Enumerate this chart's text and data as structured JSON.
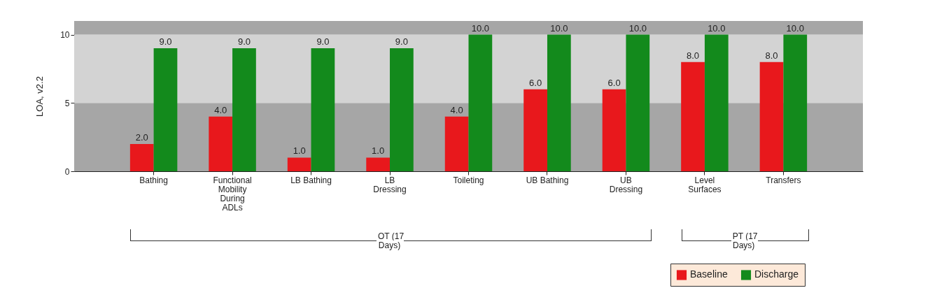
{
  "chart_data": {
    "type": "bar",
    "ylabel": "LOA, v2.2",
    "categories": [
      "Bathing",
      "Functional Mobility During ADLs",
      "LB Bathing",
      "LB Dressing",
      "Toileting",
      "UB Bathing",
      "UB Dressing",
      "Level Surfaces",
      "Transfers"
    ],
    "series": [
      {
        "name": "Baseline",
        "color": "#e8181c",
        "values": [
          2,
          4,
          1,
          1,
          4,
          6,
          6,
          8,
          8
        ],
        "value_labels": [
          "2.0",
          "4.0",
          "1.0",
          "1.0",
          "4.0",
          "6.0",
          "6.0",
          "8.0",
          "8.0"
        ]
      },
      {
        "name": "Discharge",
        "color": "#138a1c",
        "values": [
          9,
          9,
          9,
          9,
          10,
          10,
          10,
          10,
          10
        ],
        "value_labels": [
          "9.0",
          "9.0",
          "9.0",
          "9.0",
          "10.0",
          "10.0",
          "10.0",
          "10.0",
          "10.0"
        ]
      }
    ],
    "ylim": [
      0,
      11
    ],
    "yticks": [
      0,
      5,
      10
    ],
    "bands": [
      {
        "axis": "y",
        "from": 0,
        "to": 5,
        "color": "#a6a6a6"
      },
      {
        "axis": "y",
        "from": 5,
        "to": 10,
        "color": "#d3d3d3"
      },
      {
        "axis": "y",
        "from": 10,
        "to": 11,
        "color": "#a6a6a6"
      }
    ],
    "annotations": [
      "OT (17 Days)",
      "PT (17 Days)"
    ],
    "legend": "bottom right",
    "grid": false
  }
}
